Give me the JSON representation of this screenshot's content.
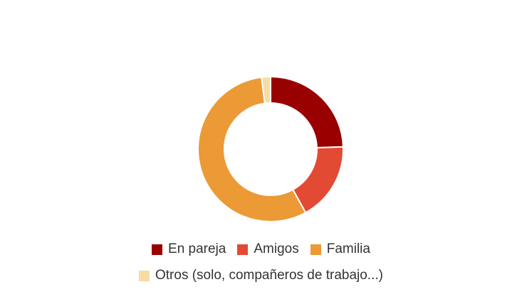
{
  "chart_data": {
    "type": "pie",
    "donut": true,
    "title": "",
    "legend_position": "bottom",
    "categories": [
      "En pareja",
      "Amigos",
      "Familia",
      "Otros (solo, compañeros de trabajo...)"
    ],
    "values": [
      24.5,
      17.5,
      56,
      2
    ],
    "colors": [
      "#990000",
      "#e34a33",
      "#eb9a35",
      "#f8dba4"
    ]
  }
}
